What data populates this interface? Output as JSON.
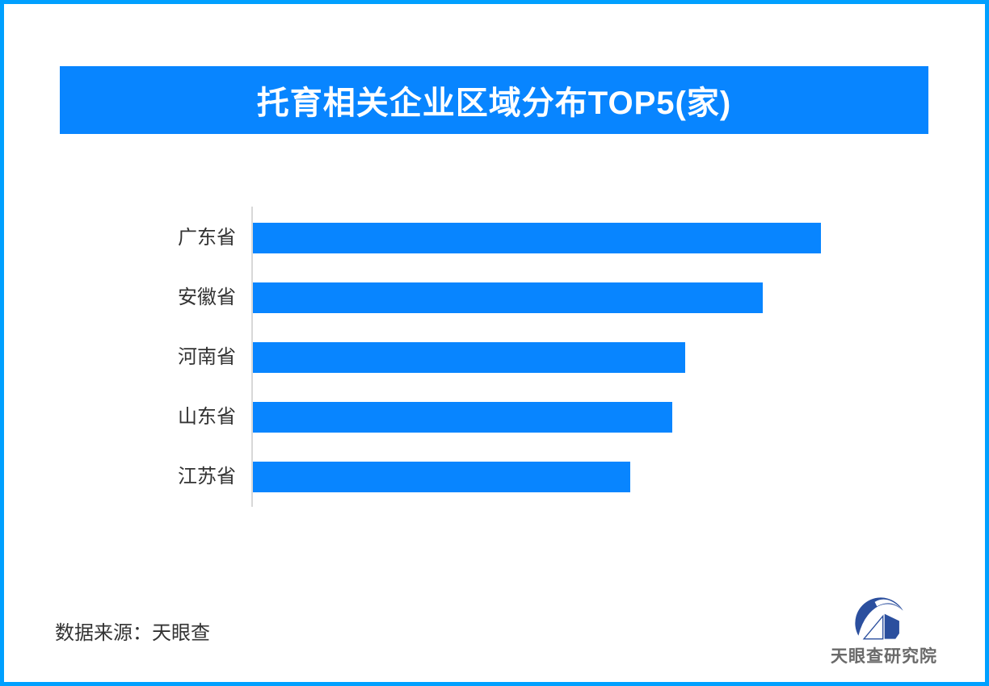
{
  "page": {
    "background": "#FFFFFF",
    "border_color": "#00A0FF"
  },
  "header": {
    "title": "托育相关企业区域分布TOP5(家)",
    "background": "#0885FF",
    "text_color": "#FFFFFF"
  },
  "chart_data": {
    "type": "bar",
    "orientation": "horizontal",
    "title": "托育相关企业区域分布TOP5(家)",
    "categories": [
      "广东省",
      "安徽省",
      "河南省",
      "山东省",
      "江苏省"
    ],
    "values": [
      703,
      631,
      535,
      519,
      467
    ],
    "value_labels_visible": false,
    "values_note": "no numeric labels shown; values are relative bar lengths in px",
    "bar_color": "#0885FF",
    "axis_line_color": "#D8D8D8",
    "label_color": "#333333",
    "grid": false,
    "legend": false
  },
  "footer": {
    "source_label": "数据来源：天眼查",
    "logo": {
      "text": "天眼查研究院",
      "mark_color": "#2B4F9E",
      "text_color": "#6A6A6A"
    }
  }
}
